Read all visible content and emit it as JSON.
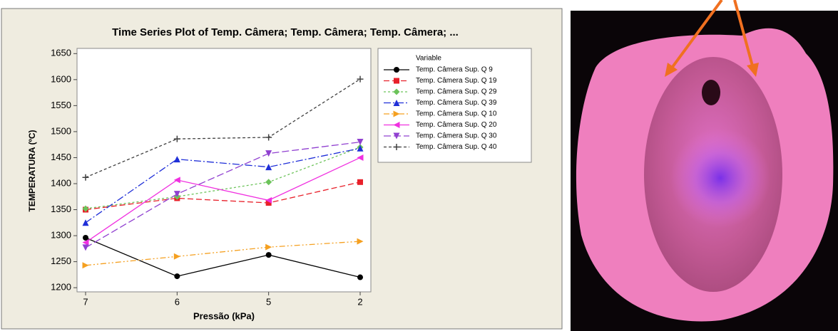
{
  "chart_data": {
    "type": "line",
    "title": "Time Series Plot of Temp. Câmera; Temp. Câmera; Temp. Câmera; ...",
    "x_label": "Pressão (kPa)",
    "y_label": "TEMPERATURA (ºC)",
    "legend_title": "Variable",
    "categories": [
      "7",
      "6",
      "5",
      "2"
    ],
    "ylim": [
      1192,
      1660
    ],
    "yticks": [
      1200,
      1250,
      1300,
      1350,
      1400,
      1450,
      1500,
      1550,
      1600,
      1650
    ],
    "series": [
      {
        "name": "Temp. Câmera Sup. Q 9",
        "color": "#000000",
        "marker": "circle",
        "dash": "solid",
        "values": [
          1296,
          1222,
          1263,
          1220
        ]
      },
      {
        "name": "Temp. Câmera Sup. Q 19",
        "color": "#e8202a",
        "marker": "square",
        "dash": "8,4",
        "values": [
          1350,
          1372,
          1363,
          1403
        ]
      },
      {
        "name": "Temp. Câmera Sup. Q 29",
        "color": "#6cc35a",
        "marker": "diamond",
        "dash": "3,3",
        "values": [
          1352,
          1375,
          1403,
          1470
        ]
      },
      {
        "name": "Temp. Câmera Sup. Q 39",
        "color": "#1f2fd8",
        "marker": "triangle-up",
        "dash": "10,3,2,3",
        "values": [
          1325,
          1447,
          1432,
          1468
        ]
      },
      {
        "name": "Temp. Câmera Sup. Q 10",
        "color": "#f5a020",
        "marker": "triangle-right",
        "dash": "8,3,2,3,2,3",
        "values": [
          1243,
          1260,
          1278,
          1289
        ]
      },
      {
        "name": "Temp. Câmera Sup. Q 20",
        "color": "#f030e0",
        "marker": "triangle-left",
        "dash": "solid",
        "values": [
          1287,
          1407,
          1368,
          1450
        ]
      },
      {
        "name": "Temp. Câmera Sup. Q 30",
        "color": "#9040d0",
        "marker": "triangle-down",
        "dash": "10,4",
        "values": [
          1277,
          1380,
          1458,
          1480
        ]
      },
      {
        "name": "Temp. Câmera Sup. Q 40",
        "color": "#404040",
        "marker": "plus",
        "dash": "4,3",
        "values": [
          1412,
          1486,
          1489,
          1601
        ]
      }
    ]
  }
}
